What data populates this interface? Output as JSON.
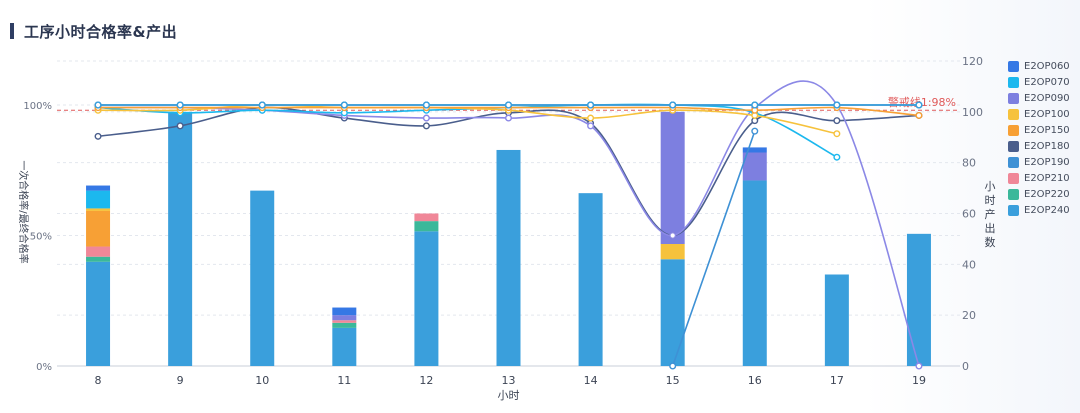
{
  "title": "工序小时合格率&产出",
  "chart_data": {
    "type": "bar+line",
    "xlabel": "小时",
    "ylabel_left": "一次合格率/最终合格率",
    "ylabel_right": "小时产出数",
    "categories": [
      "8",
      "9",
      "10",
      "11",
      "12",
      "13",
      "14",
      "15",
      "16",
      "17",
      "19"
    ],
    "y_left_ticks": [
      "0%",
      "50%",
      "100%"
    ],
    "y_right_ticks": [
      "0",
      "20",
      "40",
      "60",
      "80",
      "100",
      "120"
    ],
    "y_right_range": [
      0,
      120
    ],
    "y_left_range": [
      0,
      1
    ],
    "warning_line": {
      "label": "警戒线1:98%",
      "value": 0.98,
      "color": "#e05a5a"
    },
    "bar_series": [
      {
        "name": "E2OP240",
        "color": "#3a9fdc",
        "values": [
          41,
          100,
          69,
          15,
          53,
          85,
          68,
          42,
          73,
          36,
          52
        ]
      },
      {
        "name": "E2OP220",
        "color": "#3bb89a",
        "values": [
          2,
          0,
          0,
          2,
          4,
          0,
          0,
          0,
          0,
          0,
          0
        ]
      },
      {
        "name": "E2OP210",
        "color": "#f08798",
        "values": [
          4,
          0,
          0,
          1,
          3,
          0,
          0,
          0,
          0,
          0,
          0
        ]
      },
      {
        "name": "E2OP190",
        "color": "#3e91d5",
        "values": [
          0,
          0,
          0,
          0,
          0,
          0,
          0,
          0,
          0,
          0,
          0
        ]
      },
      {
        "name": "E2OP180",
        "color": "#4a5e8c",
        "values": [
          0,
          0,
          0,
          0,
          0,
          0,
          0,
          0,
          0,
          0,
          0
        ]
      },
      {
        "name": "E2OP150",
        "color": "#f7a035",
        "values": [
          14,
          0,
          0,
          0,
          0,
          0,
          0,
          0,
          0,
          0,
          0
        ]
      },
      {
        "name": "E2OP100",
        "color": "#f6c23c",
        "values": [
          1,
          0,
          0,
          0,
          0,
          0,
          0,
          6,
          0,
          0,
          0
        ]
      },
      {
        "name": "E2OP090",
        "color": "#7d7fe0",
        "values": [
          0,
          0,
          0,
          2,
          0,
          0,
          0,
          52,
          11,
          0,
          0
        ]
      },
      {
        "name": "E2OP070",
        "color": "#1cb8ee",
        "values": [
          7,
          0,
          0,
          0,
          0,
          0,
          0,
          0,
          0,
          0,
          0
        ]
      },
      {
        "name": "E2OP060",
        "color": "#3578e5",
        "values": [
          2,
          0,
          0,
          3,
          0,
          0,
          0,
          0,
          2,
          0,
          0
        ]
      }
    ],
    "line_series": [
      {
        "name": "E2OP180",
        "color": "#4a5e8c",
        "values": [
          0.88,
          0.92,
          0.99,
          0.95,
          0.92,
          0.97,
          0.93,
          0.5,
          0.94,
          0.94,
          0.96
        ]
      },
      {
        "name": "E2OP090",
        "color": "#8b88e6",
        "values": [
          0.99,
          0.99,
          0.98,
          0.96,
          0.95,
          0.95,
          0.92,
          0.5,
          0.99,
          1.0,
          0.0
        ]
      },
      {
        "name": "E2OP190",
        "color": "#3e91d5",
        "values": [
          null,
          null,
          null,
          null,
          null,
          null,
          null,
          0.0,
          0.9,
          null,
          null
        ]
      },
      {
        "name": "E2OP070",
        "color": "#1cb8ee",
        "values": [
          0.99,
          0.97,
          0.98,
          0.97,
          0.98,
          0.99,
          1.0,
          1.0,
          0.97,
          0.8,
          null
        ]
      },
      {
        "name": "E2OP100",
        "color": "#f6c23c",
        "values": [
          0.98,
          0.98,
          1.0,
          0.99,
          0.99,
          0.98,
          0.95,
          0.98,
          0.96,
          0.89,
          null
        ]
      },
      {
        "name": "E2OP150",
        "color": "#f7a035",
        "values": [
          0.99,
          0.99,
          0.99,
          0.99,
          0.99,
          0.99,
          0.99,
          0.99,
          0.98,
          0.99,
          0.96
        ]
      },
      {
        "name": "E2OP220",
        "color": "#3bb89a",
        "values": [
          1.0,
          1.0,
          1.0,
          1.0,
          1.0,
          1.0,
          1.0,
          1.0,
          1.0,
          1.0,
          1.0
        ]
      },
      {
        "name": "E2OP060",
        "color": "#3578e5",
        "values": [
          1.0,
          1.0,
          1.0,
          1.0,
          1.0,
          1.0,
          1.0,
          1.0,
          1.0,
          1.0,
          1.0
        ]
      },
      {
        "name": "E2OP240",
        "color": "#3a9fdc",
        "values": [
          1.0,
          1.0,
          1.0,
          1.0,
          1.0,
          1.0,
          1.0,
          1.0,
          1.0,
          1.0,
          1.0
        ]
      }
    ],
    "legend": [
      "E2OP060",
      "E2OP070",
      "E2OP090",
      "E2OP100",
      "E2OP150",
      "E2OP180",
      "E2OP190",
      "E2OP210",
      "E2OP220",
      "E2OP240"
    ],
    "legend_colors": [
      "#3578e5",
      "#1cb8ee",
      "#7d7fe0",
      "#f6c23c",
      "#f7a035",
      "#4a5e8c",
      "#3e91d5",
      "#f08798",
      "#3bb89a",
      "#3a9fdc"
    ],
    "legend_position": "right",
    "grid": true
  }
}
